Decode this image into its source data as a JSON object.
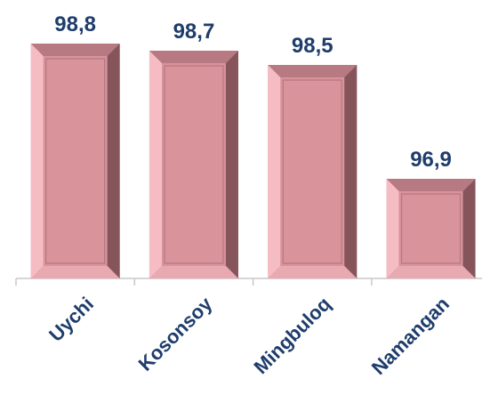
{
  "chart_data": {
    "type": "bar",
    "categories": [
      "Uychi",
      "Kosonsoy",
      "Mingbuloq",
      "Namangan"
    ],
    "values": [
      98.8,
      98.7,
      98.5,
      96.9
    ],
    "value_labels": [
      "98,8",
      "98,7",
      "98,5",
      "96,9"
    ],
    "color": "#d8939b",
    "ylim": [
      95.5,
      99.2
    ]
  }
}
